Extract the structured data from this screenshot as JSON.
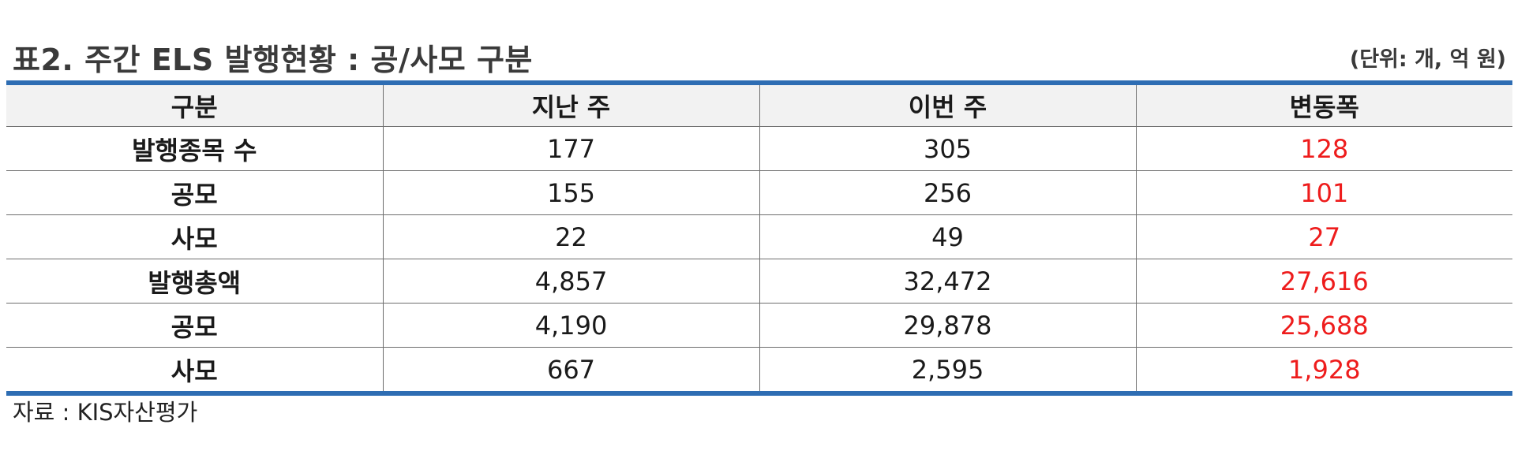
{
  "title": "표2. 주간 ELS 발행현황 : 공/사모 구분",
  "unit": "(단위: 개, 억 원)",
  "table": {
    "headers": [
      "구분",
      "지난 주",
      "이번 주",
      "변동폭"
    ],
    "rows": [
      {
        "label": "발행종목 수",
        "last_week": "177",
        "this_week": "305",
        "change": "128"
      },
      {
        "label": "공모",
        "last_week": "155",
        "this_week": "256",
        "change": "101"
      },
      {
        "label": "사모",
        "last_week": "22",
        "this_week": "49",
        "change": "27"
      },
      {
        "label": "발행총액",
        "last_week": "4,857",
        "this_week": "32,472",
        "change": "27,616"
      },
      {
        "label": "공모",
        "last_week": "4,190",
        "this_week": "29,878",
        "change": "25,688"
      },
      {
        "label": "사모",
        "last_week": "667",
        "this_week": "2,595",
        "change": "1,928"
      }
    ]
  },
  "source": "자료 : KIS자산평가",
  "colors": {
    "accent_rule": "#2e6db3",
    "change_text": "#ee1c1c",
    "header_bg": "#f2f2f2"
  }
}
